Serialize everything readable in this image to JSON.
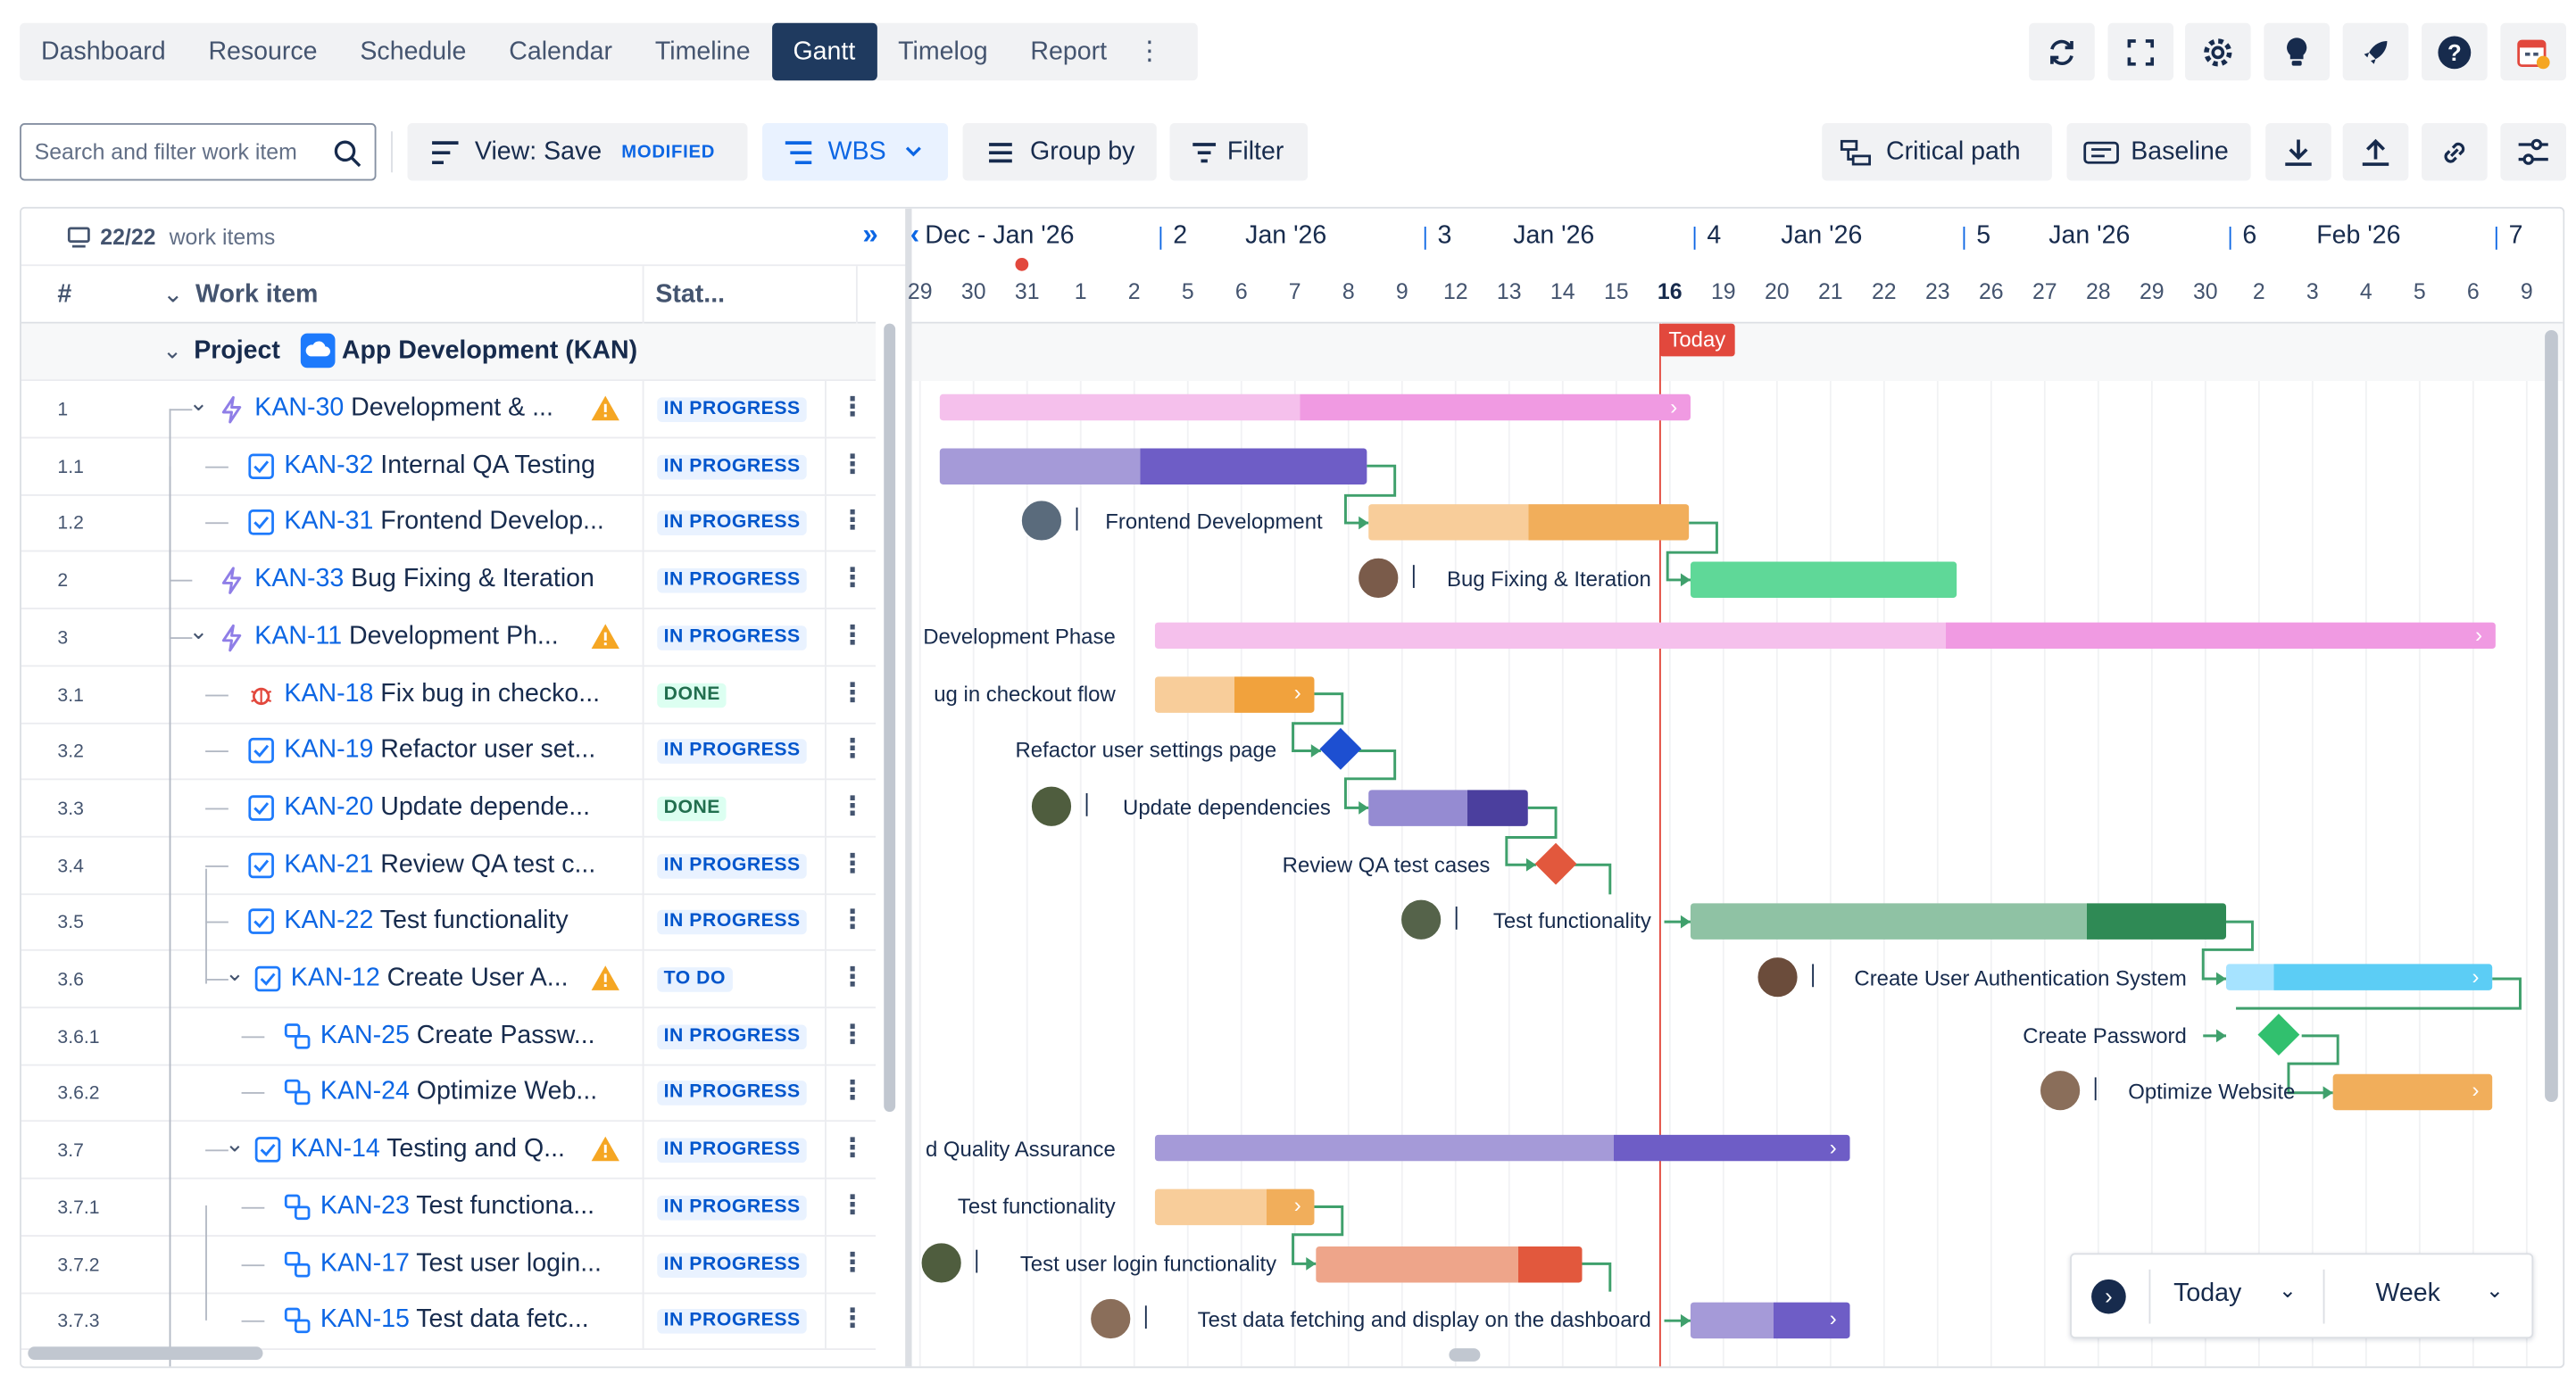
{
  "nav": {
    "tabs": [
      "Dashboard",
      "Resource",
      "Schedule",
      "Calendar",
      "Timeline",
      "Gantt",
      "Timelog",
      "Report"
    ],
    "active": "Gantt"
  },
  "toolbar": {
    "search_placeholder": "Search and filter work item",
    "view_label": "View: Save",
    "view_badge": "MODIFIED",
    "wbs": "WBS",
    "group_by": "Group by",
    "filter": "Filter",
    "critical_path": "Critical path",
    "baseline": "Baseline"
  },
  "left": {
    "count": "22/22",
    "count_suffix": "work items",
    "col_num": "#",
    "col_item": "Work item",
    "col_status": "Stat...",
    "project_label": "Project",
    "project_name": "App Development (KAN)"
  },
  "rows": [
    {
      "num": "1",
      "key": "KAN-30",
      "title": "Development & ...",
      "status": "IN PROGRESS"
    },
    {
      "num": "1.1",
      "key": "KAN-32",
      "title": "Internal QA Testing",
      "status": "IN PROGRESS"
    },
    {
      "num": "1.2",
      "key": "KAN-31",
      "title": "Frontend Develop...",
      "status": "IN PROGRESS"
    },
    {
      "num": "2",
      "key": "KAN-33",
      "title": "Bug Fixing & Iteration",
      "status": "IN PROGRESS"
    },
    {
      "num": "3",
      "key": "KAN-11",
      "title": "Development Ph...",
      "status": "IN PROGRESS"
    },
    {
      "num": "3.1",
      "key": "KAN-18",
      "title": "Fix bug in checko...",
      "status": "DONE"
    },
    {
      "num": "3.2",
      "key": "KAN-19",
      "title": "Refactor user set...",
      "status": "IN PROGRESS"
    },
    {
      "num": "3.3",
      "key": "KAN-20",
      "title": "Update depende...",
      "status": "DONE"
    },
    {
      "num": "3.4",
      "key": "KAN-21",
      "title": "Review QA test c...",
      "status": "IN PROGRESS"
    },
    {
      "num": "3.5",
      "key": "KAN-22",
      "title": "Test functionality",
      "status": "IN PROGRESS"
    },
    {
      "num": "3.6",
      "key": "KAN-12",
      "title": "Create User A...",
      "status": "TO DO"
    },
    {
      "num": "3.6.1",
      "key": "KAN-25",
      "title": "Create Passw...",
      "status": "IN PROGRESS"
    },
    {
      "num": "3.6.2",
      "key": "KAN-24",
      "title": "Optimize Web...",
      "status": "IN PROGRESS"
    },
    {
      "num": "3.7",
      "key": "KAN-14",
      "title": "Testing and Q...",
      "status": "IN PROGRESS"
    },
    {
      "num": "3.7.1",
      "key": "KAN-23",
      "title": "Test functiona...",
      "status": "IN PROGRESS"
    },
    {
      "num": "3.7.2",
      "key": "KAN-17",
      "title": "Test user login...",
      "status": "IN PROGRESS"
    },
    {
      "num": "3.7.3",
      "key": "KAN-15",
      "title": "Test data fetc...",
      "status": "IN PROGRESS"
    }
  ],
  "timeline": {
    "weeks": [
      "Dec - Jan '26",
      "2",
      "Jan '26",
      "3",
      "Jan '26",
      "4",
      "Jan '26",
      "5",
      "Jan '26",
      "6",
      "Feb '26",
      "7"
    ],
    "days": [
      "29",
      "30",
      "31",
      "1",
      "2",
      "5",
      "6",
      "7",
      "8",
      "9",
      "12",
      "13",
      "14",
      "15",
      "16",
      "19",
      "20",
      "21",
      "22",
      "23",
      "26",
      "27",
      "28",
      "29",
      "30",
      "2",
      "3",
      "4",
      "5",
      "6",
      "9"
    ],
    "today_label": "Today",
    "bar_labels": [
      "Frontend Development",
      "Bug Fixing & Iteration",
      "Development Phase",
      "ug in checkout flow",
      "Refactor user settings page",
      "Update dependencies",
      "Review QA test cases",
      "Test functionality",
      "Create User Authentication System",
      "Create Password",
      "Optimize Website",
      "d Quality Assurance",
      "Test functionality",
      "Test user login functionality",
      "Test data fetching and display on the dashboard"
    ]
  },
  "footer": {
    "today": "Today",
    "scale": "Week"
  },
  "colors": {
    "accent": "#0c66e4",
    "today_line": "#e2483d",
    "dependency": "#3fa06c"
  }
}
